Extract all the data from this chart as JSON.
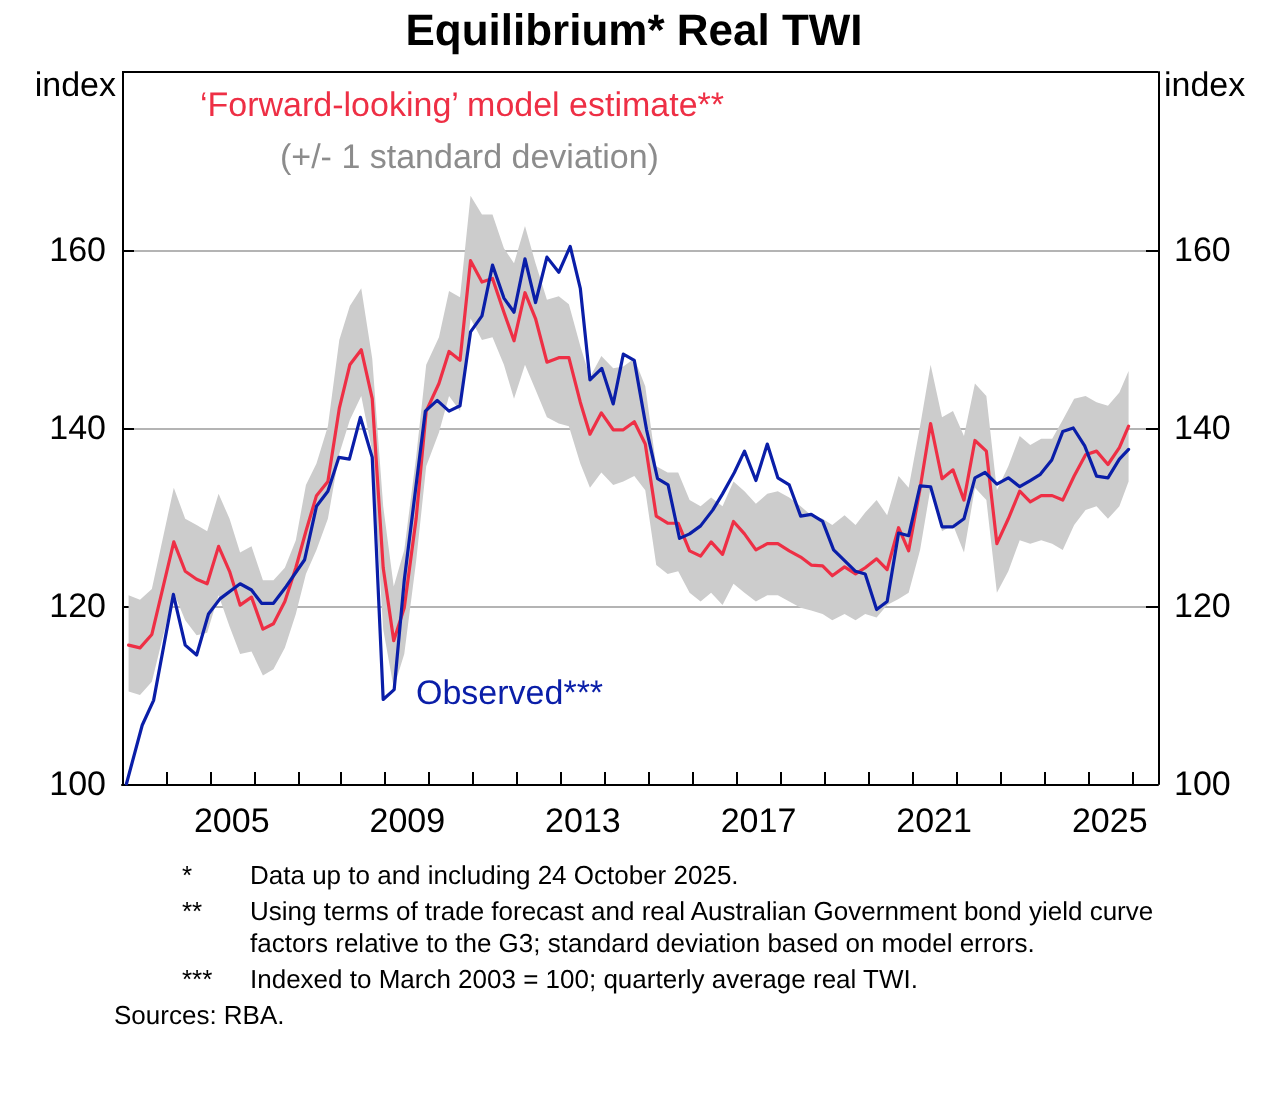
{
  "chart_data": {
    "type": "line",
    "title": "Equilibrium* Real TWI",
    "ylabel": "index",
    "y2label": "index",
    "xlim": [
      2003,
      2026.6
    ],
    "xticks": [
      {
        "value": 2004,
        "label": null
      },
      {
        "value": 2005,
        "label": null
      },
      {
        "value": 2006,
        "label": null
      },
      {
        "value": 2007,
        "label": null
      },
      {
        "value": 2008,
        "label": null
      },
      {
        "value": 2009,
        "label": null
      },
      {
        "value": 2010,
        "label": null
      },
      {
        "value": 2011,
        "label": null
      },
      {
        "value": 2012,
        "label": null
      },
      {
        "value": 2013,
        "label": null
      },
      {
        "value": 2014,
        "label": null
      },
      {
        "value": 2015,
        "label": null
      },
      {
        "value": 2016,
        "label": null
      },
      {
        "value": 2017,
        "label": null
      },
      {
        "value": 2018,
        "label": null
      },
      {
        "value": 2019,
        "label": null
      },
      {
        "value": 2020,
        "label": null
      },
      {
        "value": 2021,
        "label": null
      },
      {
        "value": 2022,
        "label": null
      },
      {
        "value": 2023,
        "label": null
      },
      {
        "value": 2024,
        "label": null
      },
      {
        "value": 2025,
        "label": null
      },
      {
        "value": 2026,
        "label": null
      },
      {
        "value": 2005.5,
        "label": "2005"
      },
      {
        "value": 2009.5,
        "label": "2009"
      },
      {
        "value": 2013.5,
        "label": "2013"
      },
      {
        "value": 2017.5,
        "label": "2017"
      },
      {
        "value": 2021.5,
        "label": "2021"
      },
      {
        "value": 2025.5,
        "label": "2025"
      }
    ],
    "ylim": [
      100,
      180
    ],
    "yticks": [
      100,
      120,
      140,
      160
    ],
    "y2lim": [
      100,
      180
    ],
    "y2ticks": [
      100,
      120,
      140,
      160
    ],
    "grid": "y",
    "legend": false,
    "line_style": "solid",
    "series": [
      {
        "name": "‘Forward-looking’ model estimate**",
        "color": "#ee2f45",
        "x": [
          2003.15,
          2003.41,
          2003.68,
          2004.18,
          2004.44,
          2004.7,
          2004.94,
          2005.2,
          2005.45,
          2005.69,
          2005.95,
          2006.21,
          2006.45,
          2006.71,
          2006.96,
          2007.19,
          2007.43,
          2007.69,
          2007.95,
          2008.19,
          2008.45,
          2008.7,
          2008.95,
          2009.19,
          2009.43,
          2009.7,
          2009.93,
          2010.22,
          2010.45,
          2010.7,
          2010.94,
          2011.2,
          2011.44,
          2011.7,
          2011.93,
          2012.18,
          2012.42,
          2012.68,
          2012.95,
          2013.18,
          2013.44,
          2013.66,
          2013.92,
          2014.19,
          2014.42,
          2014.67,
          2014.92,
          2015.17,
          2015.43,
          2015.67,
          2015.93,
          2016.18,
          2016.42,
          2016.68,
          2016.93,
          2017.18,
          2017.44,
          2017.7,
          2017.94,
          2018.2,
          2018.46,
          2018.7,
          2018.96,
          2019.18,
          2019.46,
          2019.71,
          2019.93,
          2020.19,
          2020.43,
          2020.69,
          2020.92,
          2021.18,
          2021.42,
          2021.68,
          2021.93,
          2022.18,
          2022.43,
          2022.69,
          2022.93,
          2023.19,
          2023.45,
          2023.69,
          2023.94,
          2024.19,
          2024.43,
          2024.69,
          2024.95,
          2025.2,
          2025.46,
          2025.72,
          2025.93
        ],
        "values": [
          115.6,
          115.3,
          116.8,
          127.2,
          123.9,
          123.0,
          122.5,
          126.7,
          123.9,
          120.1,
          121.0,
          117.4,
          118.0,
          120.5,
          124.3,
          128.4,
          132.4,
          134.0,
          142.2,
          147.1,
          148.8,
          143.3,
          124.3,
          116.1,
          119.8,
          129.8,
          141.9,
          145.0,
          148.6,
          147.6,
          158.8,
          156.4,
          156.8,
          153.0,
          149.8,
          155.2,
          152.3,
          147.4,
          147.9,
          147.9,
          142.9,
          139.3,
          141.7,
          139.8,
          139.8,
          140.7,
          138.2,
          130.1,
          129.3,
          129.3,
          126.2,
          125.6,
          127.2,
          125.8,
          129.5,
          128.1,
          126.3,
          127.0,
          127.0,
          126.2,
          125.5,
          124.6,
          124.5,
          123.4,
          124.4,
          123.6,
          124.3,
          125.3,
          124.1,
          128.8,
          126.2,
          133.2,
          140.5,
          134.3,
          135.3,
          131.9,
          138.6,
          137.4,
          127.0,
          129.8,
          132.9,
          131.7,
          132.4,
          132.4,
          131.9,
          134.6,
          137.0,
          137.4,
          135.9,
          137.8,
          140.2
        ],
        "lower": [
          110.4,
          110.0,
          111.5,
          121.5,
          118.4,
          116.7,
          117.0,
          121.2,
          117.7,
          114.6,
          114.9,
          112.2,
          112.9,
          115.3,
          119.1,
          123.6,
          126.3,
          129.8,
          137.1,
          140.9,
          143.6,
          137.4,
          117.4,
          110.8,
          114.6,
          125.0,
          135.7,
          139.5,
          143.6,
          141.9,
          152.3,
          149.9,
          150.2,
          147.1,
          143.3,
          147.1,
          144.3,
          141.2,
          140.5,
          140.2,
          136.0,
          133.3,
          135.0,
          133.6,
          134.0,
          134.6,
          133.0,
          124.6,
          123.6,
          123.9,
          121.5,
          120.5,
          121.5,
          120.1,
          122.5,
          121.5,
          120.5,
          121.2,
          121.2,
          120.5,
          119.8,
          119.5,
          119.1,
          118.4,
          119.1,
          118.4,
          119.1,
          118.7,
          120.1,
          120.8,
          121.5,
          126.3,
          133.3,
          128.4,
          129.1,
          126.0,
          133.3,
          131.9,
          121.5,
          123.9,
          127.4,
          127.0,
          127.4,
          127.0,
          126.3,
          129.1,
          130.8,
          131.2,
          129.8,
          131.2,
          134.0
        ],
        "upper": [
          121.2,
          120.7,
          121.9,
          133.3,
          129.8,
          129.1,
          128.4,
          132.6,
          129.8,
          126.0,
          126.7,
          122.9,
          122.9,
          124.3,
          127.4,
          133.6,
          136.0,
          140.2,
          149.9,
          153.7,
          155.7,
          147.8,
          131.2,
          122.2,
          126.3,
          136.7,
          147.1,
          150.2,
          155.4,
          154.7,
          166.1,
          164.0,
          164.0,
          160.2,
          158.5,
          162.7,
          158.5,
          154.4,
          154.8,
          153.9,
          149.2,
          145.7,
          148.1,
          146.7,
          146.9,
          147.8,
          144.7,
          135.7,
          135.0,
          135.0,
          131.9,
          131.2,
          132.2,
          131.2,
          134.0,
          132.9,
          131.5,
          132.6,
          132.9,
          132.2,
          131.2,
          130.2,
          129.8,
          129.1,
          130.2,
          129.1,
          130.5,
          131.9,
          130.2,
          134.6,
          133.3,
          140.2,
          147.1,
          141.2,
          141.9,
          139.1,
          145.0,
          143.6,
          133.0,
          135.7,
          139.1,
          138.1,
          138.8,
          138.8,
          140.9,
          143.3,
          143.6,
          142.9,
          142.5,
          144.0,
          146.4
        ]
      },
      {
        "name": "Observed***",
        "color": "#0a1ea8",
        "x": [
          2003.1,
          2003.46,
          2003.72,
          2004.17,
          2004.44,
          2004.7,
          2004.97,
          2005.23,
          2005.69,
          2005.95,
          2006.18,
          2006.45,
          2006.74,
          2007.16,
          2007.43,
          2007.69,
          2007.94,
          2008.18,
          2008.43,
          2008.7,
          2008.95,
          2009.2,
          2009.43,
          2009.91,
          2010.18,
          2010.45,
          2010.7,
          2010.94,
          2011.2,
          2011.44,
          2011.7,
          2011.93,
          2012.18,
          2012.42,
          2012.68,
          2012.95,
          2013.21,
          2013.44,
          2013.66,
          2013.93,
          2014.19,
          2014.42,
          2014.67,
          2014.95,
          2015.2,
          2015.44,
          2015.7,
          2015.93,
          2016.18,
          2016.46,
          2016.68,
          2016.95,
          2017.18,
          2017.44,
          2017.7,
          2017.94,
          2018.2,
          2018.46,
          2018.7,
          2018.96,
          2019.21,
          2019.46,
          2019.71,
          2019.93,
          2020.19,
          2020.43,
          2020.69,
          2020.92,
          2021.18,
          2021.42,
          2021.68,
          2021.93,
          2022.18,
          2022.43,
          2022.66,
          2022.93,
          2023.19,
          2023.45,
          2023.69,
          2023.92,
          2024.18,
          2024.43,
          2024.67,
          2024.93,
          2025.2,
          2025.46,
          2025.72,
          2025.93
        ],
        "values": [
          100.0,
          106.6,
          109.4,
          121.3,
          115.6,
          114.5,
          119.1,
          120.8,
          122.5,
          121.8,
          120.3,
          120.3,
          122.2,
          125.2,
          131.2,
          132.9,
          136.7,
          136.5,
          141.2,
          136.7,
          109.5,
          110.6,
          122.9,
          141.9,
          143.1,
          141.9,
          142.5,
          150.8,
          152.6,
          158.3,
          154.6,
          153.0,
          159.0,
          154.1,
          159.2,
          157.5,
          160.4,
          155.7,
          145.4,
          146.7,
          142.7,
          148.3,
          147.6,
          139.8,
          134.3,
          133.6,
          127.6,
          128.1,
          129.0,
          130.8,
          132.6,
          135.0,
          137.4,
          134.1,
          138.2,
          134.4,
          133.6,
          130.1,
          130.3,
          129.5,
          126.3,
          125.1,
          123.9,
          123.6,
          119.6,
          120.5,
          128.2,
          127.9,
          133.5,
          133.4,
          128.9,
          128.9,
          129.8,
          134.4,
          135.0,
          133.7,
          134.4,
          133.4,
          134.1,
          134.8,
          136.4,
          139.6,
          140.0,
          138.0,
          134.6,
          134.4,
          136.5,
          137.6
        ]
      }
    ],
    "annotations": [
      "(+/- 1 standard deviation)",
      "*\tData up to and including 24 October 2025.",
      "**\tUsing terms of trade forecast and real Australian Government bond yield curve factors relative to the G3; standard deviation based on model errors.",
      "***\tIndexed to March 2003 = 100; quarterly average real TWI.",
      "Sources: RBA."
    ]
  }
}
